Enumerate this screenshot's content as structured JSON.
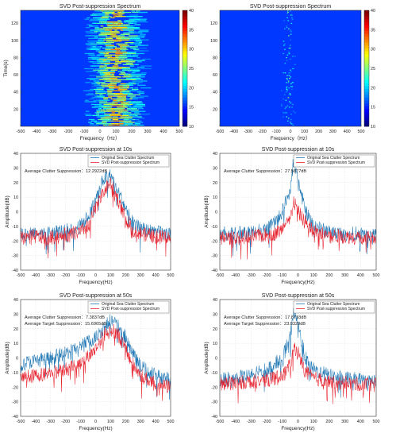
{
  "colors": {
    "original": "#1f77b4",
    "suppressed": "#e6232f",
    "cmap_low": "#0a3fc8",
    "cmap_high": "#d41414"
  },
  "chart_data": [
    {
      "type": "heatmap",
      "title": "SVD Post-suppression Spectrum",
      "xlabel": "Frequency（Hz）",
      "ylabel": "Time(s)",
      "xlim": [
        -500,
        500
      ],
      "ylim": [
        0,
        135
      ],
      "xticks": [
        "-500",
        "-400",
        "-300",
        "-200",
        "-100",
        "0",
        "100",
        "200",
        "300",
        "400",
        "500"
      ],
      "yticks": [
        "20",
        "40",
        "60",
        "80",
        "100",
        "120"
      ],
      "colorbar": {
        "range": [
          10,
          40
        ],
        "ticks": [
          "10",
          "15",
          "20",
          "25",
          "30",
          "35",
          "40"
        ]
      },
      "energy_band": {
        "center": 80,
        "width": 170,
        "peak_level": 30
      }
    },
    {
      "type": "heatmap",
      "title": "SVD Post-suppression Spectrum",
      "xlabel": "Frequency（Hz）",
      "ylabel": "",
      "xlim": [
        -500,
        500
      ],
      "ylim": [
        0,
        135
      ],
      "xticks": [
        "-500",
        "-400",
        "-300",
        "-200",
        "-100",
        "0",
        "100",
        "200",
        "300",
        "400",
        "500"
      ],
      "yticks": [
        "20",
        "40",
        "60",
        "80",
        "100",
        "120"
      ],
      "colorbar": {
        "range": [
          10,
          40
        ],
        "ticks": [
          "10",
          "15",
          "20",
          "25",
          "30",
          "35",
          "40"
        ]
      },
      "energy_band": {
        "center": -20,
        "width": 90,
        "peak_level": 22
      }
    },
    {
      "type": "line",
      "title": "SVD Post-suppression at 10s",
      "xlabel": "Frequency(Hz)",
      "ylabel": "Amplitude(dB)",
      "xlim": [
        -500,
        500
      ],
      "ylim": [
        -40,
        40
      ],
      "xticks": [
        "-500",
        "-400",
        "-300",
        "-200",
        "-100",
        "0",
        "100",
        "200",
        "300",
        "400",
        "500"
      ],
      "yticks": [
        "-40",
        "-30",
        "-20",
        "-10",
        "0",
        "10",
        "20",
        "30",
        "40"
      ],
      "grid": true,
      "legend": "top-right",
      "annotations": [
        "Average Clutter Suppression：12.2922dB"
      ],
      "series": [
        {
          "name": "Original Sea Clutter Spectrum",
          "color": "#1f77b4",
          "x": [
            -500,
            -400,
            -300,
            -200,
            -100,
            -50,
            0,
            50,
            100,
            150,
            200,
            250,
            300,
            400,
            500
          ],
          "y": [
            -15,
            -14,
            -14,
            -13,
            -10,
            -3,
            8,
            22,
            25,
            14,
            2,
            -8,
            -12,
            -14,
            -16
          ]
        },
        {
          "name": "SVD Post-suppression Spectrum",
          "color": "#e6232f",
          "x": [
            -500,
            -400,
            -300,
            -200,
            -100,
            -50,
            0,
            50,
            100,
            150,
            200,
            250,
            300,
            400,
            500
          ],
          "y": [
            -18,
            -17,
            -18,
            -16,
            -14,
            -9,
            2,
            14,
            20,
            8,
            -5,
            -12,
            -15,
            -17,
            -18
          ]
        }
      ]
    },
    {
      "type": "line",
      "title": "SVD Post-suppression at 10s",
      "xlabel": "Frequency(Hz)",
      "ylabel": "Amplitude(dB)",
      "xlim": [
        -500,
        500
      ],
      "ylim": [
        -40,
        40
      ],
      "xticks": [
        "-500",
        "-400",
        "-300",
        "-200",
        "-100",
        "0",
        "100",
        "200",
        "300",
        "400",
        "500"
      ],
      "yticks": [
        "-40",
        "-30",
        "-20",
        "-10",
        "0",
        "10",
        "20",
        "30",
        "40"
      ],
      "grid": true,
      "legend": "top-right",
      "annotations": [
        "Average Clutter Suppression：27.5877dB"
      ],
      "series": [
        {
          "name": "Original Sea Clutter Spectrum",
          "color": "#1f77b4",
          "x": [
            -500,
            -400,
            -300,
            -200,
            -150,
            -100,
            -50,
            -30,
            0,
            50,
            100,
            200,
            300,
            400,
            500
          ],
          "y": [
            -15,
            -15,
            -14,
            -12,
            -8,
            0,
            15,
            34,
            20,
            0,
            -10,
            -14,
            -15,
            -15,
            -16
          ]
        },
        {
          "name": "SVD Post-suppression Spectrum",
          "color": "#e6232f",
          "x": [
            -500,
            -400,
            -300,
            -200,
            -150,
            -100,
            -50,
            -30,
            0,
            50,
            100,
            200,
            300,
            400,
            500
          ],
          "y": [
            -18,
            -18,
            -17,
            -16,
            -15,
            -12,
            -6,
            8,
            0,
            -8,
            -13,
            -16,
            -17,
            -18,
            -18
          ]
        }
      ]
    },
    {
      "type": "line",
      "title": "SVD Post-suppression at 50s",
      "xlabel": "Frequency(Hz)",
      "ylabel": "Amplitude(dB)",
      "xlim": [
        -500,
        500
      ],
      "ylim": [
        -40,
        40
      ],
      "xticks": [
        "-500",
        "-400",
        "-300",
        "-200",
        "-100",
        "0",
        "100",
        "200",
        "300",
        "400",
        "500"
      ],
      "yticks": [
        "-40",
        "-30",
        "-20",
        "-10",
        "0",
        "10",
        "20",
        "30",
        "40"
      ],
      "grid": true,
      "legend": "top-right",
      "annotations": [
        "Average Clutter Suppression：7.3837dB",
        "Average Target Suppression：15.6965dB"
      ],
      "series": [
        {
          "name": "Original Sea Clutter Spectrum",
          "color": "#1f77b4",
          "x": [
            -500,
            -400,
            -300,
            -200,
            -100,
            0,
            50,
            100,
            150,
            200,
            250,
            300,
            400,
            500
          ],
          "y": [
            -4,
            -2,
            0,
            3,
            8,
            14,
            20,
            26,
            22,
            14,
            2,
            -6,
            -12,
            -15
          ]
        },
        {
          "name": "SVD Post-suppression Spectrum",
          "color": "#e6232f",
          "x": [
            -500,
            -400,
            -300,
            -200,
            -100,
            0,
            50,
            100,
            150,
            200,
            250,
            300,
            400,
            500
          ],
          "y": [
            -14,
            -12,
            -10,
            -8,
            -3,
            6,
            15,
            20,
            16,
            6,
            -5,
            -12,
            -18,
            -20
          ]
        }
      ]
    },
    {
      "type": "line",
      "title": "SVD Post-suppression at 50s",
      "xlabel": "Frequency(Hz)",
      "ylabel": "Amplitude(dB)",
      "xlim": [
        -500,
        500
      ],
      "ylim": [
        -40,
        40
      ],
      "xticks": [
        "-500",
        "-400",
        "-300",
        "-200",
        "-100",
        "0",
        "100",
        "200",
        "300",
        "400",
        "500"
      ],
      "yticks": [
        "-40",
        "-30",
        "-20",
        "-10",
        "0",
        "10",
        "20",
        "30",
        "40"
      ],
      "grid": true,
      "legend": "top-right",
      "annotations": [
        "Average Clutter Suppression：17.8718dB",
        "Average Target Suppression：23.8329dB"
      ],
      "series": [
        {
          "name": "Original Sea Clutter Spectrum",
          "color": "#1f77b4",
          "x": [
            -500,
            -400,
            -300,
            -200,
            -100,
            -50,
            -25,
            0,
            25,
            50,
            100,
            200,
            300,
            400,
            500
          ],
          "y": [
            -15,
            -14,
            -12,
            -8,
            0,
            14,
            32,
            24,
            10,
            0,
            -8,
            -12,
            -14,
            -15,
            -16
          ]
        },
        {
          "name": "SVD Post-suppression Spectrum",
          "color": "#e6232f",
          "x": [
            -500,
            -400,
            -300,
            -200,
            -100,
            -50,
            -25,
            0,
            25,
            50,
            100,
            200,
            300,
            400,
            500
          ],
          "y": [
            -18,
            -17,
            -16,
            -15,
            -12,
            -5,
            8,
            4,
            -4,
            -10,
            -14,
            -16,
            -17,
            -18,
            -18
          ]
        }
      ]
    }
  ]
}
